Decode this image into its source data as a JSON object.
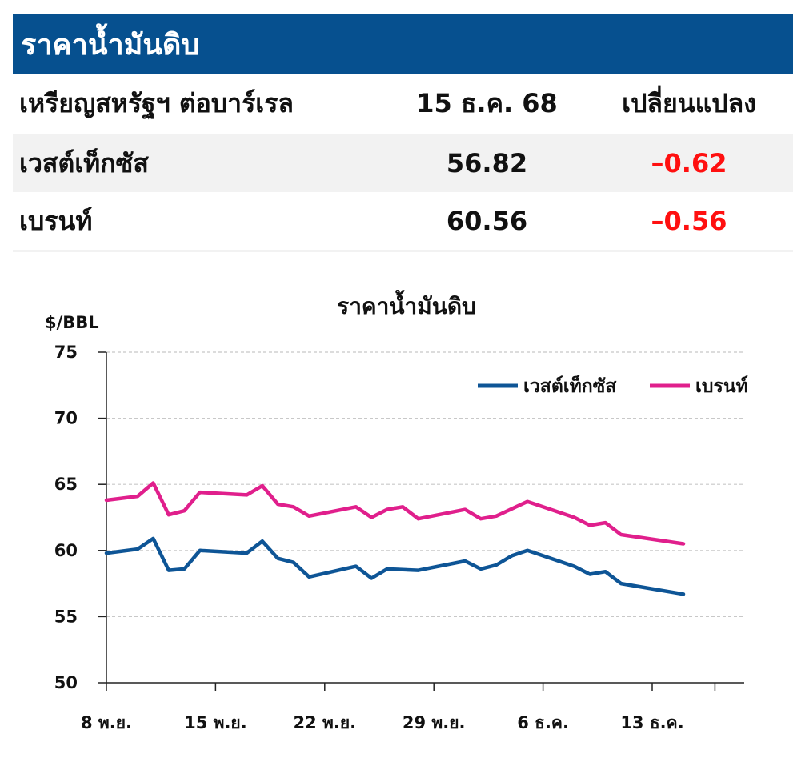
{
  "header": {
    "title": "ราคาน้ำมันดิบ"
  },
  "table": {
    "columns": [
      "เหรียญสหรัฐฯ ต่อบาร์เรล",
      "15 ธ.ค. 68",
      "เปลี่ยนแปลง"
    ],
    "rows": [
      {
        "name": "เวสต์เท็กซัส",
        "price": "56.82",
        "change": "–0.62"
      },
      {
        "name": "เบรนท์",
        "price": "60.56",
        "change": "–0.56"
      }
    ]
  },
  "colors": {
    "banner": "#06508f",
    "wti": "#0e5596",
    "brent": "#e01f8c",
    "negative": "#ff1010"
  },
  "chart_data": {
    "type": "line",
    "title": "ราคาน้ำมันดิบ",
    "ylabel": "$/BBL",
    "ylim": [
      50,
      75
    ],
    "yticks": [
      50,
      55,
      60,
      65,
      70,
      75
    ],
    "xlim": [
      0,
      40
    ],
    "xticks": [
      {
        "x": 0,
        "label": "8 พ.ย."
      },
      {
        "x": 7,
        "label": "15 พ.ย."
      },
      {
        "x": 14,
        "label": "22 พ.ย."
      },
      {
        "x": 21,
        "label": "29 พ.ย."
      },
      {
        "x": 28,
        "label": "6 ธ.ค."
      },
      {
        "x": 35,
        "label": "13 ธ.ค."
      }
    ],
    "grid": true,
    "legend": "top-right",
    "series": [
      {
        "name": "เวสต์เท็กซัส",
        "color": "#0e5596",
        "points": [
          [
            0,
            59.8
          ],
          [
            2,
            60.1
          ],
          [
            3,
            60.9
          ],
          [
            4,
            58.5
          ],
          [
            5,
            58.6
          ],
          [
            6,
            60.0
          ],
          [
            9,
            59.8
          ],
          [
            10,
            60.7
          ],
          [
            11,
            59.4
          ],
          [
            12,
            59.1
          ],
          [
            13,
            58.0
          ],
          [
            16,
            58.8
          ],
          [
            17,
            57.9
          ],
          [
            18,
            58.6
          ],
          [
            20,
            58.5
          ],
          [
            23,
            59.2
          ],
          [
            24,
            58.6
          ],
          [
            25,
            58.9
          ],
          [
            26,
            59.6
          ],
          [
            27,
            60.0
          ],
          [
            30,
            58.8
          ],
          [
            31,
            58.2
          ],
          [
            32,
            58.4
          ],
          [
            33,
            57.5
          ],
          [
            37,
            56.7
          ]
        ]
      },
      {
        "name": "เบรนท์",
        "color": "#e01f8c",
        "points": [
          [
            0,
            63.8
          ],
          [
            2,
            64.1
          ],
          [
            3,
            65.1
          ],
          [
            4,
            62.7
          ],
          [
            5,
            63.0
          ],
          [
            6,
            64.4
          ],
          [
            9,
            64.2
          ],
          [
            10,
            64.9
          ],
          [
            11,
            63.5
          ],
          [
            12,
            63.3
          ],
          [
            13,
            62.6
          ],
          [
            16,
            63.3
          ],
          [
            17,
            62.5
          ],
          [
            18,
            63.1
          ],
          [
            19,
            63.3
          ],
          [
            20,
            62.4
          ],
          [
            23,
            63.1
          ],
          [
            24,
            62.4
          ],
          [
            25,
            62.6
          ],
          [
            27,
            63.7
          ],
          [
            30,
            62.5
          ],
          [
            31,
            61.9
          ],
          [
            32,
            62.1
          ],
          [
            33,
            61.2
          ],
          [
            37,
            60.5
          ]
        ]
      }
    ]
  }
}
